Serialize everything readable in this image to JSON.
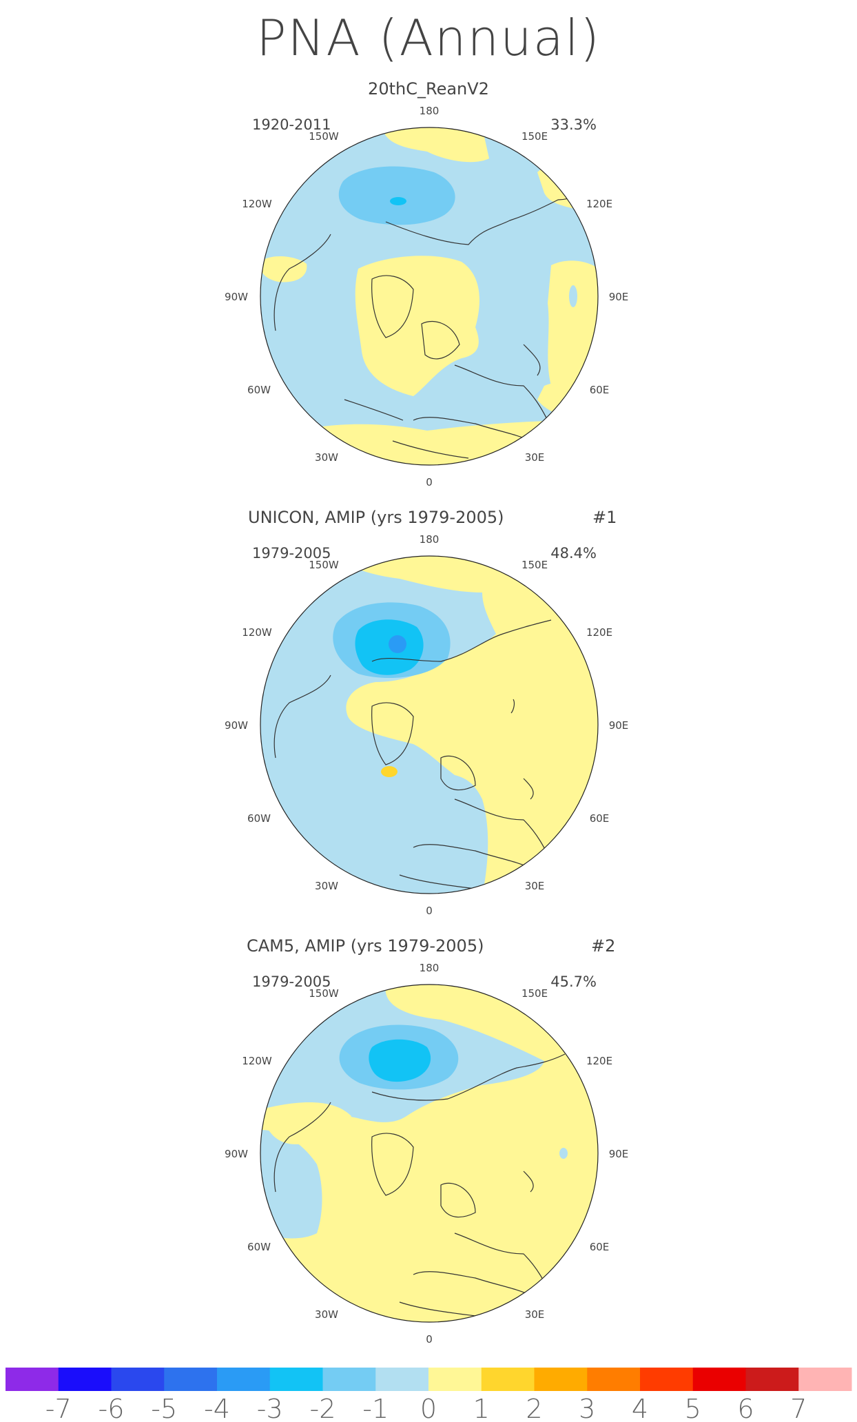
{
  "title": "PNA (Annual)",
  "colors": {
    "land_line": "#333333",
    "circle_line": "#222222",
    "text": "#555555"
  },
  "longitude_labels": [
    "180",
    "150E",
    "120E",
    "90E",
    "60E",
    "30E",
    "0",
    "30W",
    "60W",
    "90W",
    "120W",
    "150W"
  ],
  "panels": [
    {
      "name": "20thC_ReanV2",
      "title": "20thC_ReanV2",
      "tag": "",
      "years": "1920-2011",
      "variance": "33.3%"
    },
    {
      "name": "unicon",
      "title": "UNICON, AMIP (yrs 1979-2005)",
      "tag": "#1",
      "years": "1979-2005",
      "variance": "48.4%"
    },
    {
      "name": "cam5",
      "title": "CAM5, AMIP (yrs 1979-2005)",
      "tag": "#2",
      "years": "1979-2005",
      "variance": "45.7%"
    }
  ],
  "colorbar": {
    "colors": [
      "#8e2ae8",
      "#1a0dfb",
      "#2a48ee",
      "#2d72ee",
      "#2a9bf5",
      "#12c3f5",
      "#74ccf3",
      "#b2dff1",
      "#fff796",
      "#ffd62d",
      "#ffab00",
      "#ff7d00",
      "#ff3c00",
      "#ea0000",
      "#cc1b1b",
      "#ffb4b4"
    ],
    "labels": [
      "-7",
      "-6",
      "-5",
      "-4",
      "-3",
      "-2",
      "-1",
      "0",
      "1",
      "2",
      "3",
      "4",
      "5",
      "6",
      "7"
    ]
  }
}
